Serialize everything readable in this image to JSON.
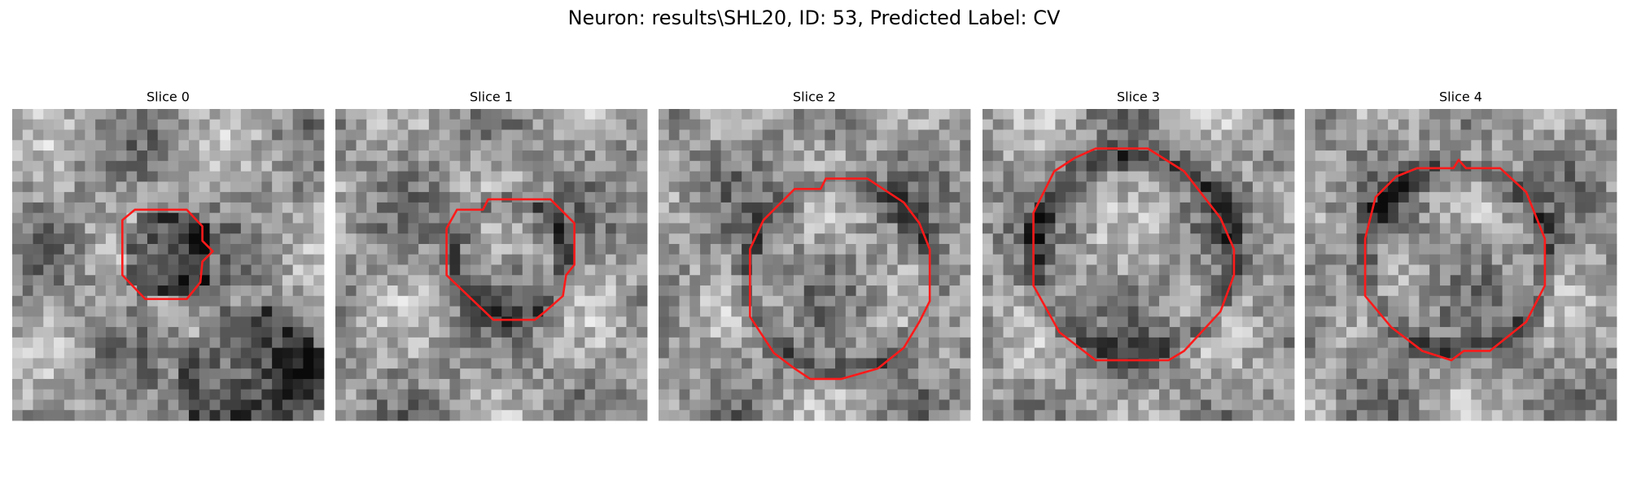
{
  "title": "Neuron: results\\SHL20, ID: 53, Predicted Label: CV",
  "panels": [
    {
      "title": "Slice 0"
    },
    {
      "title": "Slice 1"
    },
    {
      "title": "Slice 2"
    },
    {
      "title": "Slice 3"
    },
    {
      "title": "Slice 4"
    }
  ]
}
